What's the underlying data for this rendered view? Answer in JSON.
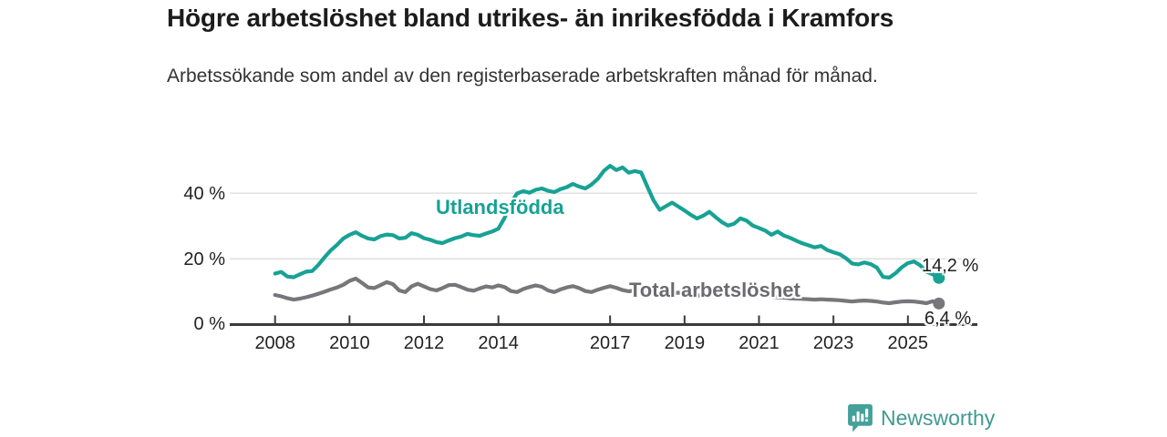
{
  "header": {
    "title": "Högre arbetslöshet bland utrikes- än inrikesfödda i Kramfors",
    "subtitle": "Arbetssökande som andel av den registerbaserade arbetskraften månad för månad."
  },
  "chart_data": {
    "type": "line",
    "x_start": 2008.0,
    "x_step_years": 0.1666667,
    "xlabel": "",
    "ylabel": "",
    "ylim": [
      0,
      55
    ],
    "grid": "horizontal",
    "legend_position": "inline-labels",
    "x_ticks": [
      2008,
      2010,
      2012,
      2014,
      2017,
      2019,
      2021,
      2023,
      2025
    ],
    "x_tick_labels": [
      "2008",
      "2010",
      "2012",
      "2014",
      "2017",
      "2019",
      "2021",
      "2023",
      "2025"
    ],
    "y_ticks": [
      0,
      20,
      40
    ],
    "y_tick_labels": [
      "0 %",
      "20 %",
      "40 %"
    ],
    "series": [
      {
        "name": "Utlandsfödda",
        "color": "#17a295",
        "end_label": "14,2 %",
        "end_value": 14.2,
        "values": [
          15.5,
          16.0,
          14.6,
          14.4,
          15.3,
          16.1,
          16.3,
          18.2,
          20.5,
          22.6,
          24.3,
          26.2,
          27.3,
          28.1,
          27.0,
          26.2,
          25.9,
          26.9,
          27.4,
          27.2,
          26.2,
          26.4,
          27.8,
          27.3,
          26.3,
          25.8,
          25.1,
          24.8,
          25.6,
          26.3,
          26.8,
          27.6,
          27.2,
          27.0,
          27.7,
          28.3,
          29.2,
          32.5,
          37.0,
          39.9,
          40.6,
          40.1,
          41.0,
          41.4,
          40.7,
          40.3,
          41.2,
          41.8,
          42.8,
          42.0,
          41.4,
          42.6,
          44.3,
          46.8,
          48.3,
          47.0,
          47.8,
          46.2,
          46.7,
          46.3,
          42.0,
          37.8,
          34.9,
          36.0,
          37.1,
          35.9,
          34.7,
          33.4,
          32.3,
          33.1,
          34.3,
          32.7,
          31.2,
          30.1,
          30.7,
          32.3,
          31.6,
          30.1,
          29.4,
          28.6,
          27.3,
          28.3,
          27.1,
          26.4,
          25.5,
          24.7,
          24.1,
          23.5,
          23.9,
          22.7,
          22.0,
          21.4,
          20.2,
          18.6,
          18.3,
          18.9,
          18.4,
          17.3,
          14.5,
          14.3,
          15.6,
          17.4,
          18.7,
          19.2,
          18.0,
          16.1,
          15.3,
          14.2
        ]
      },
      {
        "name": "Total arbetslöshet",
        "color": "#77767a",
        "end_label": "6,4 %",
        "end_value": 6.4,
        "values": [
          9.0,
          8.6,
          8.0,
          7.6,
          7.9,
          8.3,
          8.8,
          9.4,
          10.0,
          10.7,
          11.3,
          12.1,
          13.3,
          14.0,
          12.7,
          11.3,
          11.1,
          12.0,
          12.9,
          12.3,
          10.4,
          9.9,
          11.6,
          12.4,
          11.6,
          10.8,
          10.4,
          11.1,
          12.0,
          12.1,
          11.4,
          10.6,
          10.3,
          11.0,
          11.6,
          11.3,
          11.9,
          11.4,
          10.2,
          9.9,
          10.8,
          11.4,
          11.9,
          11.5,
          10.4,
          9.9,
          10.7,
          11.3,
          11.7,
          11.1,
          10.2,
          9.9,
          10.6,
          11.2,
          11.7,
          11.2,
          10.5,
          10.1,
          10.4,
          10.5,
          10.2,
          9.8,
          9.4,
          9.2,
          9.5,
          9.7,
          9.5,
          9.2,
          8.9,
          8.7,
          9.0,
          9.3,
          9.5,
          9.9,
          10.1,
          9.8,
          9.5,
          9.2,
          9.0,
          8.8,
          8.5,
          8.3,
          8.2,
          8.0,
          7.9,
          7.8,
          7.7,
          7.6,
          7.7,
          7.6,
          7.5,
          7.4,
          7.2,
          7.0,
          7.2,
          7.3,
          7.2,
          7.0,
          6.7,
          6.5,
          6.8,
          7.0,
          7.1,
          7.0,
          6.8,
          6.5,
          7.1,
          6.4
        ]
      }
    ]
  },
  "footer": {
    "brand": "Newsworthy",
    "brand_color": "#3f9a92",
    "logo_icon": "newsworthy-speech-bubble-bar-chart-icon"
  },
  "colors": {
    "accent_teal": "#17a295",
    "line_gray": "#77767a",
    "axis": "#3a3a3a",
    "gridline": "#dcdcdc",
    "title_text": "#1c1c1c",
    "body_text": "#333333"
  }
}
